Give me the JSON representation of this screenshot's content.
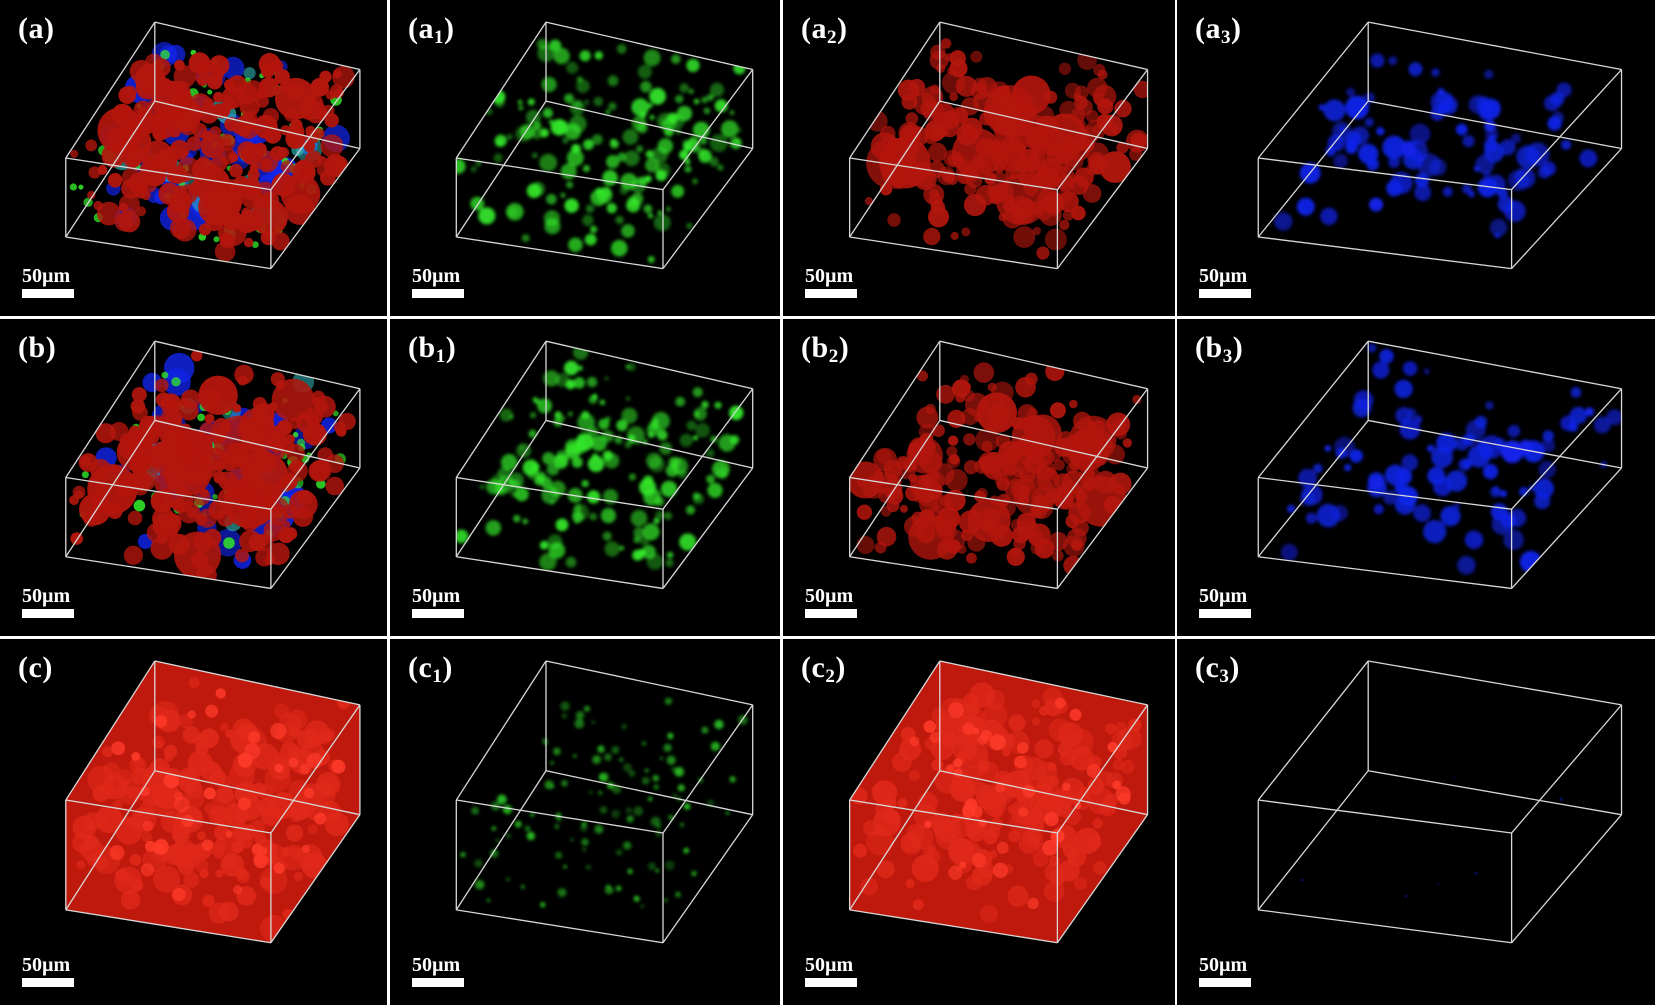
{
  "panels": [
    {
      "label_main": "(a",
      "label_sub": "",
      "scale_text": "50µm",
      "channel": "merge",
      "row": 0,
      "col": 0
    },
    {
      "label_main": "(a",
      "label_sub": "1",
      "scale_text": "50µm",
      "channel": "green",
      "row": 0,
      "col": 1
    },
    {
      "label_main": "(a",
      "label_sub": "2",
      "scale_text": "50µm",
      "channel": "red",
      "row": 0,
      "col": 2
    },
    {
      "label_main": "(a",
      "label_sub": "3",
      "scale_text": "50µm",
      "channel": "blue",
      "row": 0,
      "col": 3
    },
    {
      "label_main": "(b",
      "label_sub": "",
      "scale_text": "50µm",
      "channel": "merge",
      "row": 1,
      "col": 0
    },
    {
      "label_main": "(b",
      "label_sub": "1",
      "scale_text": "50µm",
      "channel": "green",
      "row": 1,
      "col": 1
    },
    {
      "label_main": "(b",
      "label_sub": "2",
      "scale_text": "50µm",
      "channel": "red",
      "row": 1,
      "col": 2
    },
    {
      "label_main": "(b",
      "label_sub": "3",
      "scale_text": "50µm",
      "channel": "blue",
      "row": 1,
      "col": 3
    },
    {
      "label_main": "(c",
      "label_sub": "",
      "scale_text": "50µm",
      "channel": "merge-dense",
      "row": 2,
      "col": 0
    },
    {
      "label_main": "(c",
      "label_sub": "1",
      "scale_text": "50µm",
      "channel": "green-sparse",
      "row": 2,
      "col": 1
    },
    {
      "label_main": "(c",
      "label_sub": "2",
      "scale_text": "50µm",
      "channel": "red-dense",
      "row": 2,
      "col": 2
    },
    {
      "label_main": "(c",
      "label_sub": "3",
      "scale_text": "50µm",
      "channel": "blue-empty",
      "row": 2,
      "col": 3
    }
  ],
  "colors": {
    "red": "#b3160d",
    "green": "#33e82a",
    "blue": "#1224e8",
    "cyan": "#33bdbd",
    "box": "#d8d8d8"
  }
}
